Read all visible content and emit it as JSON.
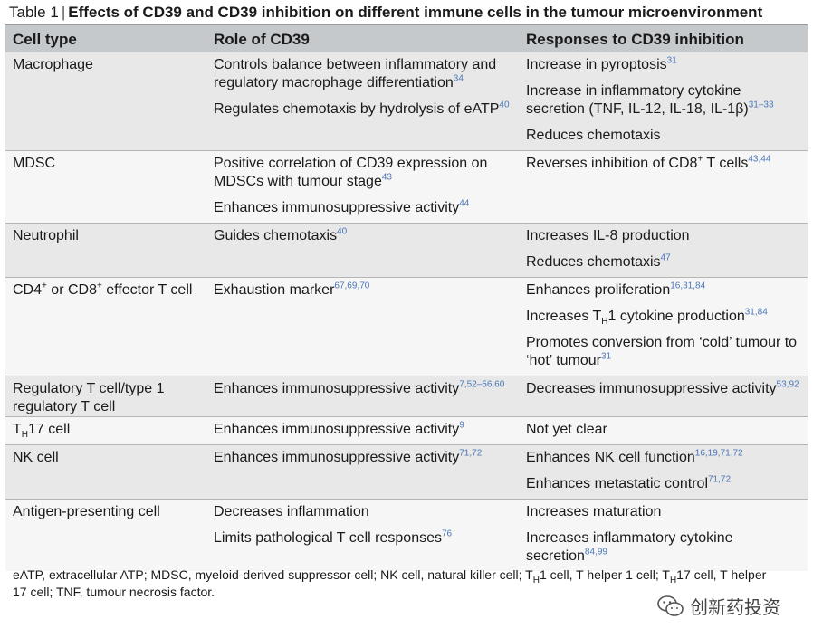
{
  "caption": {
    "label": "Table 1",
    "separator": "|",
    "title": "Effects of CD39 and CD39 inhibition on different immune cells in the tumour microenvironment"
  },
  "headers": [
    "Cell type",
    "Role of CD39",
    "Responses to CD39 inhibition"
  ],
  "rows": [
    {
      "cell_type": "Macrophage",
      "roles": [
        {
          "text": "Controls balance between inflammatory and regulatory macrophage differentiation",
          "ref": "34"
        },
        {
          "text": "Regulates chemotaxis by hydrolysis of eATP",
          "ref": "40"
        }
      ],
      "responses": [
        {
          "text": "Increase in pyroptosis",
          "ref": "31"
        },
        {
          "text": "Increase in inflammatory cytokine secretion (TNF, IL-12, IL-18, IL-1β)",
          "ref": "31–33"
        },
        {
          "text": "Reduces chemotaxis",
          "ref": ""
        }
      ]
    },
    {
      "cell_type": "MDSC",
      "roles": [
        {
          "text": "Positive correlation of CD39 expression on MDSCs with tumour stage",
          "ref": "43"
        },
        {
          "text": "Enhances immunosuppressive activity",
          "ref": "44"
        }
      ],
      "responses": [
        {
          "pre": "Reverses inhibition of CD8",
          "sup": "+",
          "text": " T cells",
          "ref": "43,44"
        }
      ]
    },
    {
      "cell_type": "Neutrophil",
      "roles": [
        {
          "text": "Guides chemotaxis",
          "ref": "40"
        }
      ],
      "responses": [
        {
          "text": "Increases IL-8 production",
          "ref": ""
        },
        {
          "text": "Reduces chemotaxis",
          "ref": "47"
        }
      ]
    },
    {
      "cell_type_parts": [
        "CD4",
        "+",
        " or CD8",
        "+",
        " effector T cell"
      ],
      "roles": [
        {
          "text": "Exhaustion marker",
          "ref": "67,69,70"
        }
      ],
      "responses": [
        {
          "text": "Enhances proliferation",
          "ref": "16,31,84"
        },
        {
          "pre": "Increases T",
          "sub": "H",
          "text": "1 cytokine production",
          "ref": "31,84"
        },
        {
          "text": "Promotes conversion from ‘cold’ tumour to ‘hot’ tumour",
          "ref": "31"
        }
      ]
    },
    {
      "cell_type": "Regulatory T cell/type 1 regulatory T cell",
      "roles": [
        {
          "text": "Enhances immunosuppressive activity",
          "ref": "7,52–56,60"
        }
      ],
      "responses": [
        {
          "text": "Decreases immunosuppressive activity",
          "ref": "53,92"
        }
      ]
    },
    {
      "cell_type_parts": [
        "T",
        "H",
        "17 cell"
      ],
      "roles": [
        {
          "text": "Enhances immunosuppressive activity",
          "ref": "9"
        }
      ],
      "responses": [
        {
          "text": "Not yet clear",
          "ref": ""
        }
      ]
    },
    {
      "cell_type": "NK cell",
      "roles": [
        {
          "text": "Enhances immunosuppressive activity",
          "ref": "71,72"
        }
      ],
      "responses": [
        {
          "text": "Enhances NK cell function",
          "ref": "16,19,71,72"
        },
        {
          "text": "Enhances metastatic control",
          "ref": "71,72"
        }
      ]
    },
    {
      "cell_type": "Antigen-presenting cell",
      "roles": [
        {
          "text": "Decreases inflammation",
          "ref": ""
        },
        {
          "text": "Limits pathological T cell responses",
          "ref": "76"
        }
      ],
      "responses": [
        {
          "text": "Increases maturation",
          "ref": ""
        },
        {
          "text": "Increases inflammatory cytokine secretion",
          "ref": "84,99"
        }
      ]
    }
  ],
  "footnote": {
    "part1": "eATP, extracellular ATP; MDSC, myeloid-derived suppressor cell; NK cell, natural killer cell; T",
    "sub1": "H",
    "part2": "1 cell, T helper 1 cell; T",
    "sub2": "H",
    "part3": "17 cell, T helper 17 cell; TNF, tumour necrosis factor."
  },
  "watermark": {
    "text": "创新药投资",
    "icon": "wechat-icon"
  }
}
